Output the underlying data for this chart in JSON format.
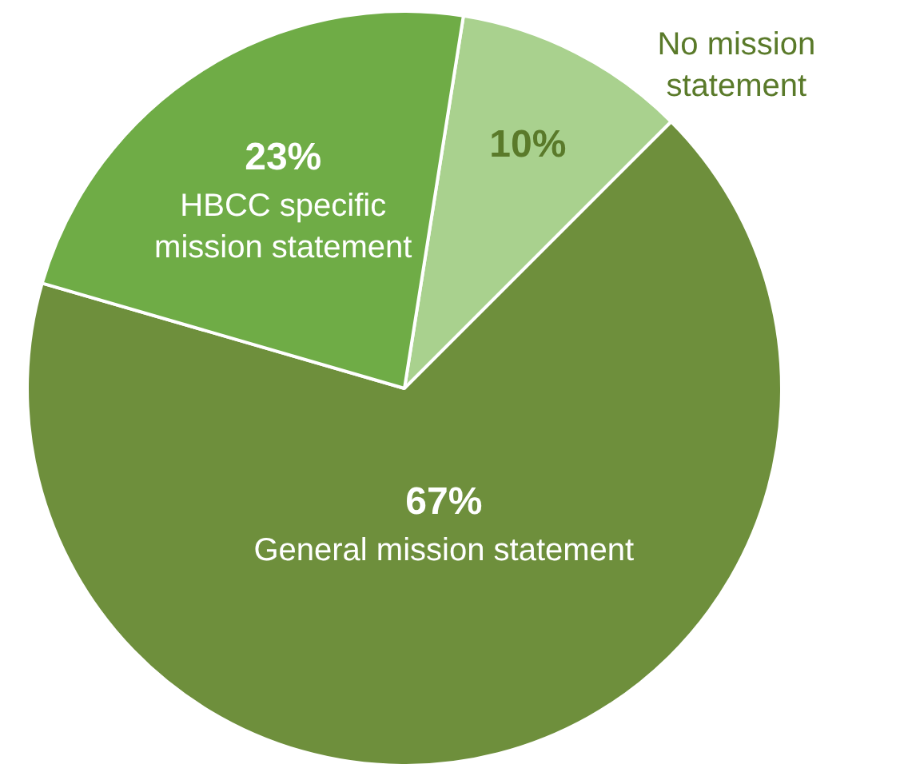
{
  "chart_data": {
    "type": "pie",
    "categories": [
      "No mission statement",
      "General mission statement",
      "HBCC specific mission statement"
    ],
    "values": [
      10,
      67,
      23
    ],
    "colors": [
      "#a9d18e",
      "#6e8f3c",
      "#6fac46"
    ],
    "value_labels": [
      "10%",
      "67%",
      "23%"
    ],
    "legend": false
  }
}
